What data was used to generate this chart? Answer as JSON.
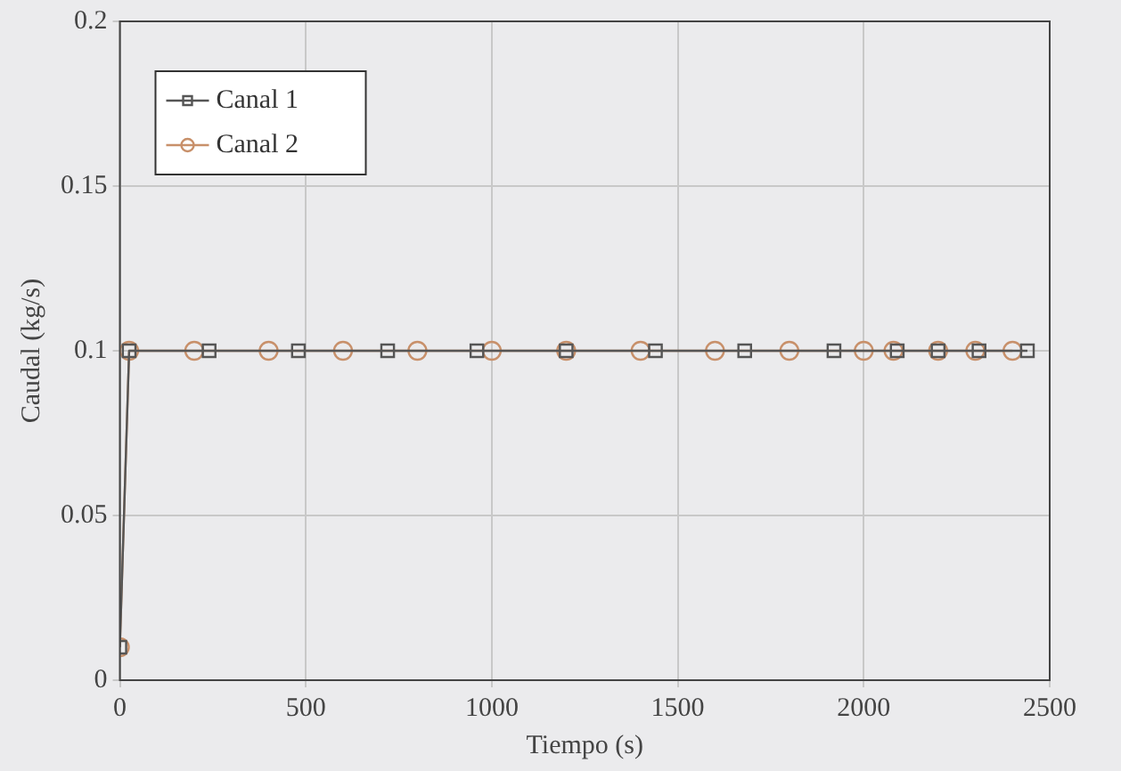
{
  "chart_data": {
    "type": "line",
    "xlabel": "Tiempo (s)",
    "ylabel": "Caudal (kg/s)",
    "xlim": [
      0,
      2500
    ],
    "xticks": [
      0,
      500,
      1000,
      1500,
      2000,
      2500
    ],
    "ylim": [
      0,
      0.2
    ],
    "yticks": [
      0,
      0.05,
      0.1,
      0.15,
      0.2
    ],
    "grid": true,
    "legend": "top left",
    "line_style": "solid",
    "series": [
      {
        "name": "Canal 1",
        "color": "#555555",
        "marker": "square",
        "x": [
          0,
          25,
          240,
          480,
          720,
          960,
          1200,
          1440,
          1680,
          1920,
          2090,
          2200,
          2310,
          2440
        ],
        "values": [
          0.01,
          0.1,
          0.1,
          0.1,
          0.1,
          0.1,
          0.1,
          0.1,
          0.1,
          0.1,
          0.1,
          0.1,
          0.1,
          0.1
        ]
      },
      {
        "name": "Canal 2",
        "color": "#c8906a",
        "marker": "circle",
        "x": [
          0,
          25,
          200,
          400,
          600,
          800,
          1000,
          1200,
          1400,
          1600,
          1800,
          2000,
          2080,
          2200,
          2300,
          2400
        ],
        "values": [
          0.01,
          0.1,
          0.1,
          0.1,
          0.1,
          0.1,
          0.1,
          0.1,
          0.1,
          0.1,
          0.1,
          0.1,
          0.1,
          0.1,
          0.1,
          0.1
        ]
      }
    ]
  }
}
